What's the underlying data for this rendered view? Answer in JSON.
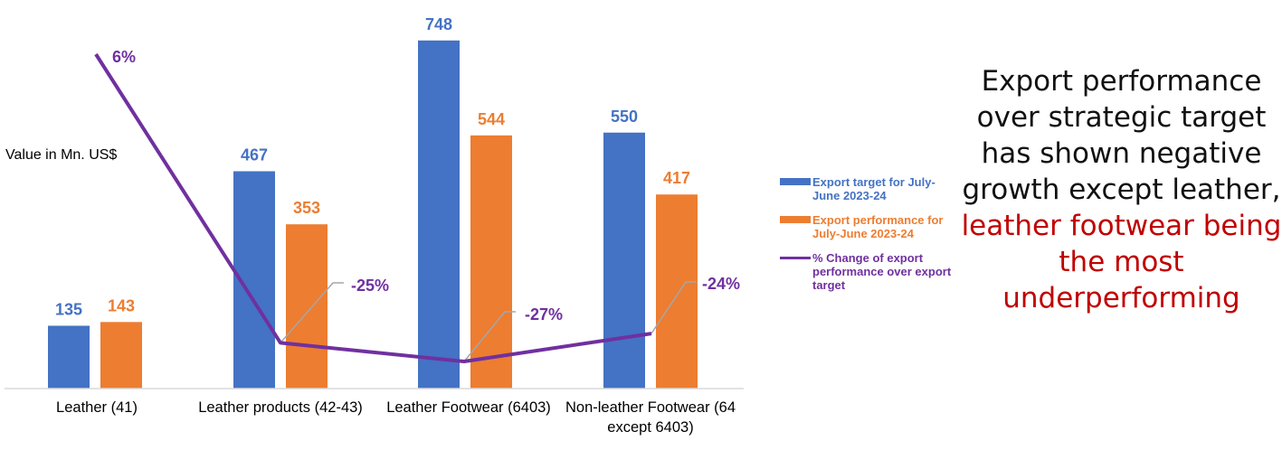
{
  "chart_data": {
    "type": "bar",
    "ylabel": "Value in Mn. US$",
    "categories": [
      "Leather (41)",
      "Leather products (42-43)",
      "Leather Footwear (6403)",
      "Non-leather Footwear (64 except 6403)"
    ],
    "series": [
      {
        "name": "Export target for July-June 2023-24",
        "values": [
          135,
          467,
          748,
          550
        ],
        "color": "#4472c4",
        "labels": [
          "135",
          "467",
          "748",
          "550"
        ]
      },
      {
        "name": "Export performance for July-June 2023-24",
        "values": [
          143,
          353,
          544,
          417
        ],
        "color": "#ed7d31",
        "labels": [
          "143",
          "353",
          "544",
          "417"
        ]
      }
    ],
    "line_series": {
      "name": "% Change of export performance over export target",
      "values": [
        6,
        -25,
        -27,
        -24
      ],
      "labels": [
        "6%",
        "-25%",
        "-27%",
        "-24%"
      ],
      "color": "#7030a0"
    },
    "legend_position": "right",
    "grid": false
  },
  "side_text": {
    "black": "Export performance over strategic target has shown negative growth except leather,",
    "red": "leather footwear being the most underperforming"
  }
}
